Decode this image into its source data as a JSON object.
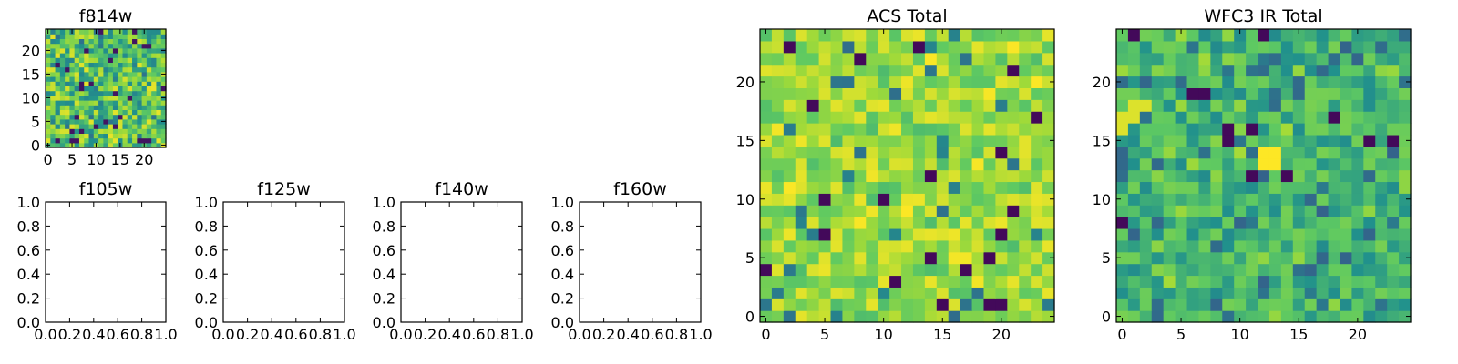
{
  "colors": {
    "viridis": [
      "#440154",
      "#3b528b",
      "#21918c",
      "#5ec962",
      "#a0da39",
      "#fde725"
    ],
    "axis": "#000000"
  },
  "chart_data": [
    {
      "type": "heatmap",
      "title": "f814w",
      "xlabel": "",
      "ylabel": "",
      "xlim": [
        -0.5,
        24.5
      ],
      "ylim": [
        -0.5,
        24.5
      ],
      "xticks": [
        "0",
        "5",
        "10",
        "15",
        "20"
      ],
      "yticks": [
        "0",
        "5",
        "10",
        "15",
        "20"
      ],
      "grid_size": [
        25,
        25
      ],
      "colormap": "viridis",
      "values": "25x25 pixel intensity grid (noise-like, values vary between 0 and 1)"
    },
    {
      "type": "empty",
      "title": "f105w",
      "xlim": [
        0,
        1
      ],
      "ylim": [
        0,
        1
      ],
      "xticks": [
        "0.0",
        "0.2",
        "0.4",
        "0.6",
        "0.8",
        "1.0"
      ],
      "yticks": [
        "0.0",
        "0.2",
        "0.4",
        "0.6",
        "0.8",
        "1.0"
      ]
    },
    {
      "type": "empty",
      "title": "f125w",
      "xlim": [
        0,
        1
      ],
      "ylim": [
        0,
        1
      ],
      "xticks": [
        "0.0",
        "0.2",
        "0.4",
        "0.6",
        "0.8",
        "1.0"
      ],
      "yticks": [
        "0.0",
        "0.2",
        "0.4",
        "0.6",
        "0.8",
        "1.0"
      ]
    },
    {
      "type": "empty",
      "title": "f140w",
      "xlim": [
        0,
        1
      ],
      "ylim": [
        0,
        1
      ],
      "xticks": [
        "0.0",
        "0.2",
        "0.4",
        "0.6",
        "0.8",
        "1.0"
      ],
      "yticks": [
        "0.0",
        "0.2",
        "0.4",
        "0.6",
        "0.8",
        "1.0"
      ]
    },
    {
      "type": "empty",
      "title": "f160w",
      "xlim": [
        0,
        1
      ],
      "ylim": [
        0,
        1
      ],
      "xticks": [
        "0.0",
        "0.2",
        "0.4",
        "0.6",
        "0.8",
        "1.0"
      ],
      "yticks": [
        "0.0",
        "0.2",
        "0.4",
        "0.6",
        "0.8",
        "1.0"
      ]
    },
    {
      "type": "heatmap",
      "title": "ACS Total",
      "xlabel": "",
      "ylabel": "",
      "xlim": [
        -0.5,
        24.5
      ],
      "ylim": [
        -0.5,
        24.5
      ],
      "xticks": [
        "0",
        "5",
        "10",
        "15",
        "20"
      ],
      "yticks": [
        "0",
        "5",
        "10",
        "15",
        "20"
      ],
      "grid_size": [
        25,
        25
      ],
      "colormap": "viridis",
      "values": "25x25 pixel intensity grid, mostly green-yellow with scattered dark pixels"
    },
    {
      "type": "heatmap",
      "title": "WFC3 IR Total",
      "xlabel": "",
      "ylabel": "",
      "xlim": [
        -0.5,
        24.5
      ],
      "ylim": [
        -0.5,
        24.5
      ],
      "xticks": [
        "0",
        "5",
        "10",
        "15",
        "20"
      ],
      "yticks": [
        "0",
        "5",
        "10",
        "15",
        "20"
      ],
      "grid_size": [
        25,
        25
      ],
      "colormap": "viridis",
      "values": "25x25 pixel intensity grid, mostly teal-green with bright spots near (12,13) and (0,17)"
    }
  ]
}
